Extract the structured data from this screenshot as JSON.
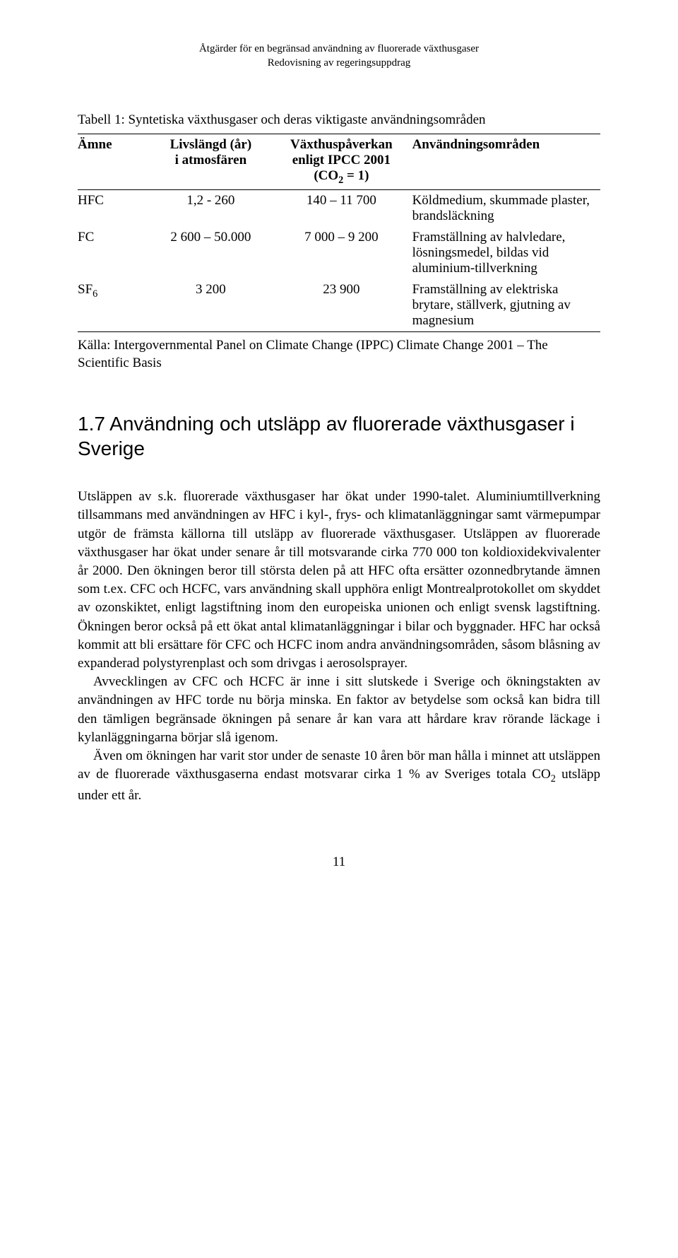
{
  "header": {
    "line1": "Åtgärder för en begränsad användning av fluorerade växthusgaser",
    "line2": "Redovisning av regeringsuppdrag"
  },
  "table": {
    "caption": "Tabell 1: Syntetiska växthusgaser och deras viktigaste användningsområden",
    "columns": {
      "c1": "Ämne",
      "c2_line1": "Livslängd (år)",
      "c2_line2": "i atmosfären",
      "c3_line1": "Växthuspåverkan",
      "c3_line2": "enligt IPCC 2001",
      "c3_line3": "(CO",
      "c3_sub": "2",
      "c3_line3b": " = 1)",
      "c4": "Användningsområden"
    },
    "rows": [
      {
        "amne": "HFC",
        "liv": "1,2 - 260",
        "vaxt": "140 – 11 700",
        "anv": "Köldmedium, skummade plaster, brandsläckning"
      },
      {
        "amne": "FC",
        "liv": "2 600 – 50.000",
        "vaxt": "7 000 – 9 200",
        "anv": "Framställning av halvledare, lösningsmedel, bildas vid aluminium-tillverkning"
      },
      {
        "amne_pre": "SF",
        "amne_sub": "6",
        "liv": "3 200",
        "vaxt": "23 900",
        "anv": "Framställning av elektriska brytare, ställverk, gjutning av magnesium"
      }
    ],
    "source": "Källa: Intergovernmental Panel on Climate Change (IPPC) Climate Change 2001 – The Scientific Basis"
  },
  "section": {
    "heading": "1.7  Användning och utsläpp av fluorerade växthusgaser i Sverige",
    "p1": "Utsläppen av s.k. fluorerade växthusgaser har ökat under 1990-talet. Aluminiumtillverkning tillsammans med användningen av HFC i kyl-, frys- och klimatanläggningar samt värmepumpar utgör de främsta källorna till utsläpp av fluorerade växthusgaser. Utsläppen av fluorerade växthusgaser har ökat under senare år till motsvarande cirka 770 000 ton koldioxidekvivalenter år 2000. Den ökningen beror till största delen på att HFC ofta ersätter ozonnedbrytande ämnen som t.ex. CFC och HCFC, vars användning skall upphöra enligt Montrealprotokollet om skyddet av ozonskiktet, enligt lagstiftning inom den europeiska unionen och enligt svensk lagstiftning. Ökningen beror också på ett ökat antal klimatanläggningar i bilar och byggnader. HFC har också kommit att bli ersättare för CFC och HCFC inom andra användningsområden, såsom blåsning av expanderad polystyrenplast och som drivgas i aerosolsprayer.",
    "p2": "Avvecklingen av CFC och HCFC är inne i sitt slutskede i Sverige och ökningstakten av användningen av HFC torde nu börja minska. En faktor av betydelse som också kan bidra till den tämligen begränsade ökningen på senare år kan vara att hårdare krav rörande läckage i kylanläggningarna börjar slå igenom.",
    "p3_a": "Även om ökningen har varit stor under de senaste 10 åren bör man hålla i minnet att utsläppen av de fluorerade växthusgaserna endast motsvarar cirka 1 % av Sveriges totala CO",
    "p3_sub": "2",
    "p3_b": " utsläpp under ett år."
  },
  "pageNumber": "11"
}
